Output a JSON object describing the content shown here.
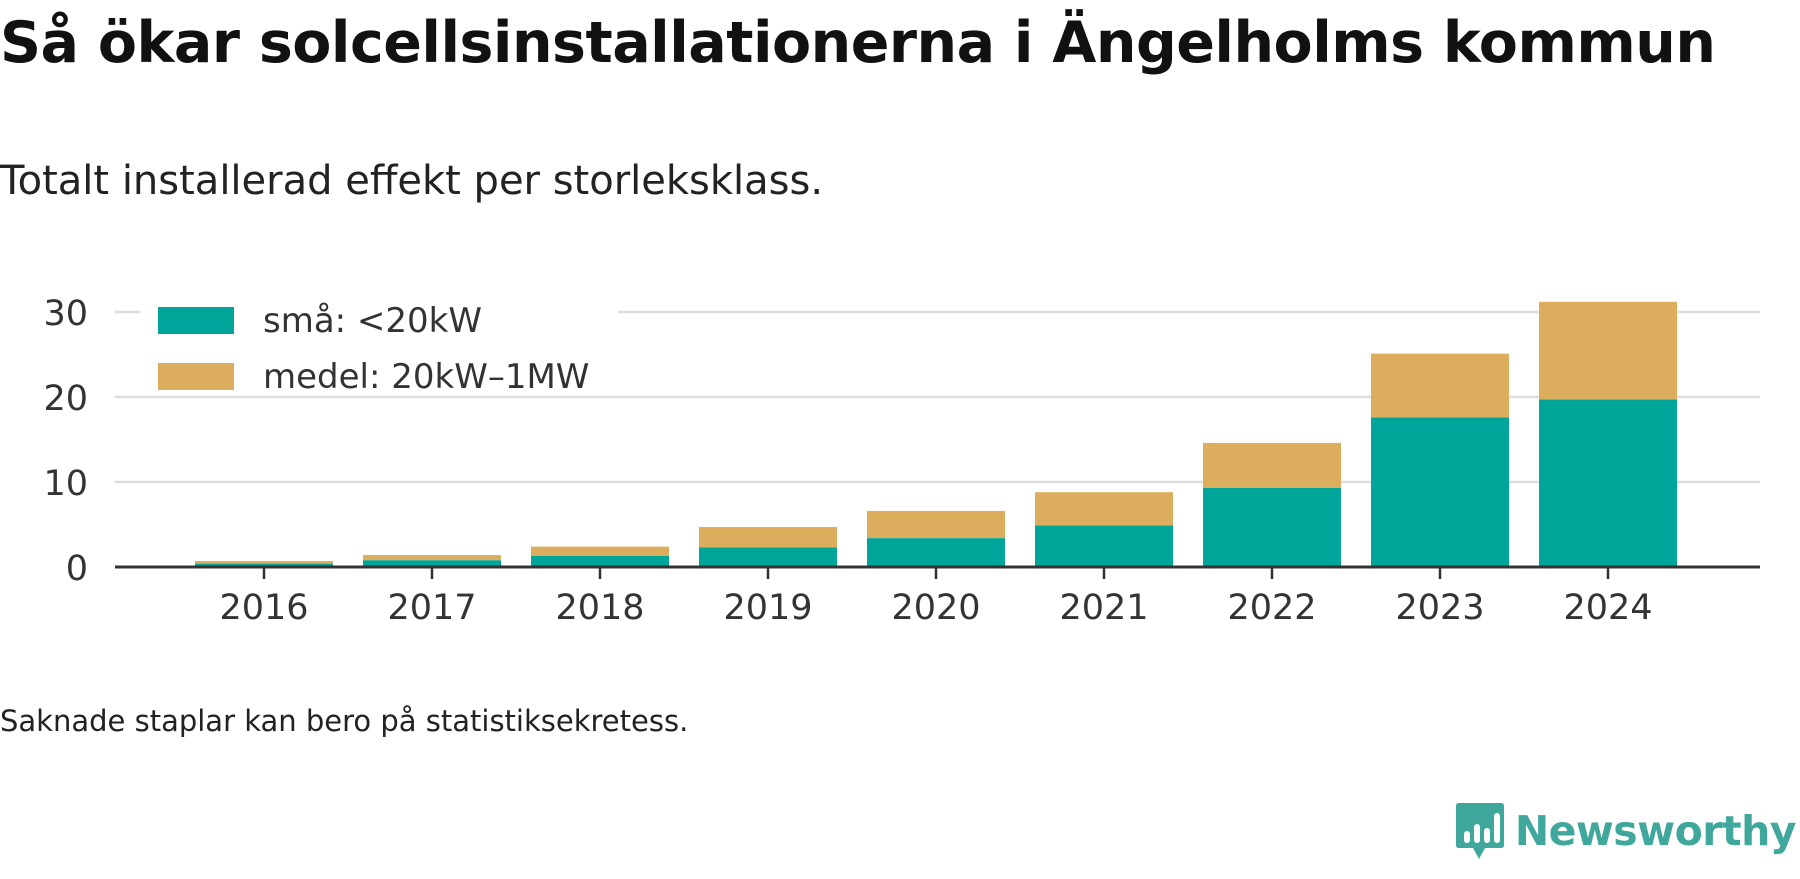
{
  "title": "Så ökar solcellsinstallationerna i Ängelholms kommun",
  "subtitle": "Totalt installerad effekt per storleksklass.",
  "footnote": "Saknade staplar kan bero på statistiksekretess.",
  "logo": {
    "text": "Newsworthy",
    "icon": "newsworthy-logo-icon"
  },
  "colors": {
    "small": "#00a59a",
    "medium": "#dbad5c",
    "grid": "#dddddd",
    "axis": "#333333",
    "logo": "#3fa79b"
  },
  "chart_data": {
    "type": "bar",
    "stacked": true,
    "categories": [
      "2016",
      "2017",
      "2018",
      "2019",
      "2020",
      "2021",
      "2022",
      "2023",
      "2024"
    ],
    "series": [
      {
        "name": "små: <20kW",
        "values": [
          0.4,
          0.8,
          1.3,
          2.3,
          3.4,
          4.9,
          9.3,
          17.6,
          19.7
        ]
      },
      {
        "name": "medel: 20kW–1MW",
        "values": [
          0.3,
          0.6,
          1.1,
          2.4,
          3.2,
          3.9,
          5.3,
          7.5,
          11.5
        ]
      }
    ],
    "yticks": [
      0,
      10,
      20,
      30
    ],
    "ylim": [
      0,
      33
    ],
    "xlabel": "",
    "ylabel": "",
    "grid": true,
    "legend_position": "top-left"
  }
}
